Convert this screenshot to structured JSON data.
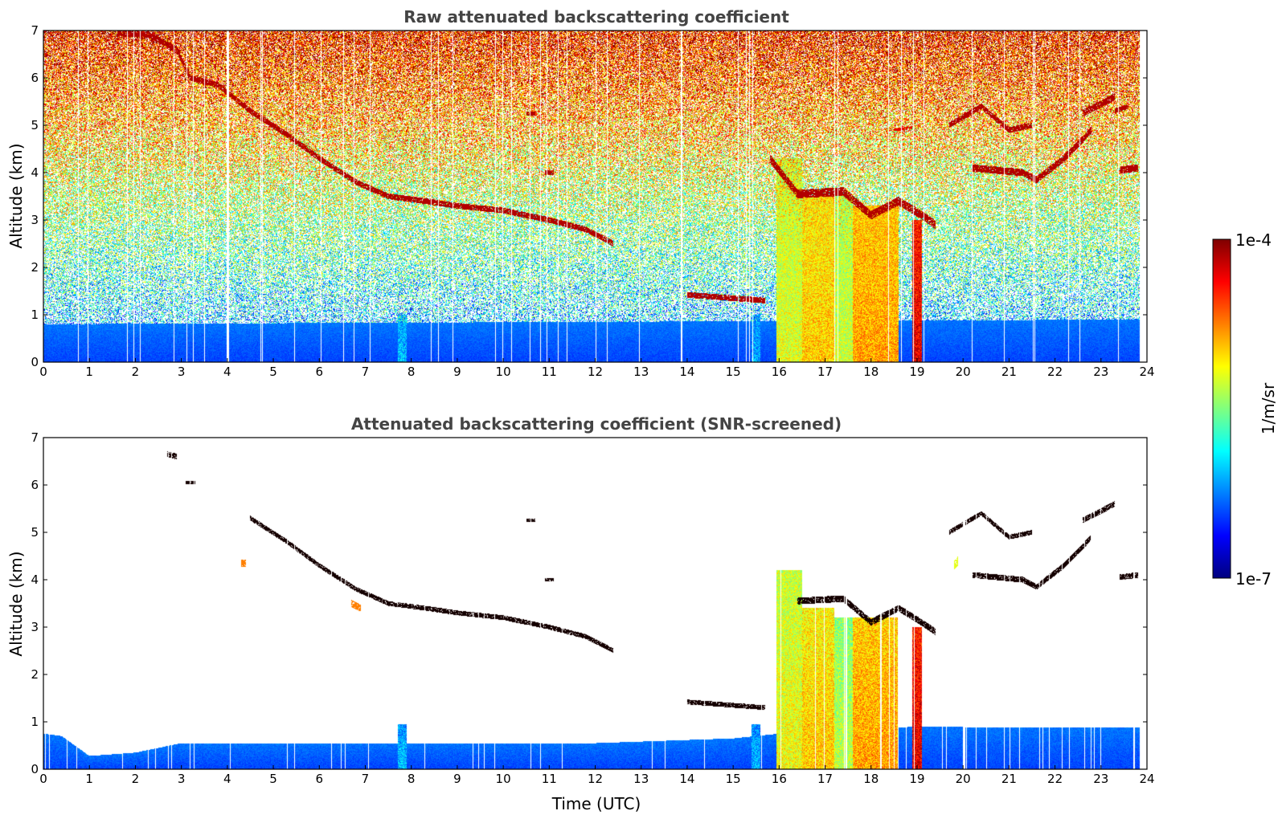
{
  "colormap": [
    "#00007f",
    "#0000ff",
    "#007fff",
    "#00ffff",
    "#7fff7f",
    "#ffff00",
    "#ff7f00",
    "#ff0000",
    "#7f0000"
  ],
  "colorbar": {
    "max_label": "1e-4",
    "min_label": "1e-7",
    "unit_label": "1/m/sr"
  },
  "chart_data": [
    {
      "type": "heatmap",
      "title": "Raw attenuated backscattering coefficient",
      "xlabel": "",
      "ylabel": "Altitude (km)",
      "xlim": [
        0,
        24
      ],
      "ylim": [
        0,
        7
      ],
      "x_ticks": [
        "0",
        "1",
        "2",
        "3",
        "4",
        "5",
        "6",
        "7",
        "8",
        "9",
        "10",
        "11",
        "12",
        "13",
        "14",
        "15",
        "16",
        "17",
        "18",
        "19",
        "20",
        "21",
        "22",
        "23",
        "24"
      ],
      "y_ticks": [
        "0",
        "1",
        "2",
        "3",
        "4",
        "5",
        "6",
        "7"
      ],
      "noise": true,
      "boundary_layer_top_km": [
        [
          0,
          0.8
        ],
        [
          24,
          0.9
        ]
      ],
      "cloud_layers": [
        {
          "points": [
            [
              1.6,
              6.95
            ],
            [
              2.3,
              6.9
            ],
            [
              2.9,
              6.6
            ],
            [
              3.2,
              6.0
            ],
            [
              3.8,
              5.85
            ],
            [
              4.5,
              5.3
            ],
            [
              5.3,
              4.8
            ],
            [
              6.0,
              4.3
            ],
            [
              6.8,
              3.8
            ],
            [
              7.5,
              3.5
            ],
            [
              8.3,
              3.4
            ],
            [
              9.0,
              3.3
            ],
            [
              10.0,
              3.2
            ],
            [
              11.0,
              3.0
            ],
            [
              11.8,
              2.8
            ],
            [
              12.4,
              2.5
            ]
          ],
          "thickness_km": 0.12,
          "level": 0.95
        },
        {
          "points": [
            [
              14.0,
              1.42
            ],
            [
              15.7,
              1.3
            ]
          ],
          "thickness_km": 0.12,
          "level": 0.95
        },
        {
          "points": [
            [
              15.8,
              4.3
            ],
            [
              16.4,
              3.55
            ],
            [
              17.4,
              3.6
            ],
            [
              18.0,
              3.1
            ],
            [
              18.6,
              3.4
            ],
            [
              19.1,
              3.1
            ],
            [
              19.4,
              2.9
            ]
          ],
          "thickness_km": 0.18,
          "level": 0.95
        },
        {
          "points": [
            [
              19.7,
              5.0
            ],
            [
              20.4,
              5.4
            ],
            [
              21.0,
              4.9
            ],
            [
              21.5,
              5.0
            ]
          ],
          "thickness_km": 0.12,
          "level": 0.95
        },
        {
          "points": [
            [
              20.2,
              4.1
            ],
            [
              21.3,
              4.0
            ],
            [
              21.6,
              3.85
            ],
            [
              22.2,
              4.3
            ],
            [
              22.8,
              4.9
            ]
          ],
          "thickness_km": 0.15,
          "level": 0.95
        },
        {
          "points": [
            [
              22.6,
              5.25
            ],
            [
              23.3,
              5.6
            ]
          ],
          "thickness_km": 0.15,
          "level": 0.95
        },
        {
          "points": [
            [
              23.3,
              5.3
            ],
            [
              23.6,
              5.4
            ]
          ],
          "thickness_km": 0.1,
          "level": 0.95
        },
        {
          "points": [
            [
              23.4,
              4.05
            ],
            [
              23.8,
              4.1
            ]
          ],
          "thickness_km": 0.15,
          "level": 0.95
        },
        {
          "points": [
            [
              10.5,
              5.25
            ],
            [
              10.7,
              5.25
            ]
          ],
          "thickness_km": 0.08,
          "level": 0.95
        },
        {
          "points": [
            [
              10.9,
              4.0
            ],
            [
              11.1,
              4.0
            ]
          ],
          "thickness_km": 0.1,
          "level": 0.95
        },
        {
          "points": [
            [
              18.5,
              4.9
            ],
            [
              18.9,
              4.95
            ]
          ],
          "thickness_km": 0.06,
          "level": 0.9
        }
      ],
      "precipitation": [
        {
          "x": [
            15.95,
            16.5
          ],
          "top_km": 4.3,
          "level": 0.6
        },
        {
          "x": [
            16.5,
            17.2
          ],
          "top_km": 3.5,
          "level": 0.68
        },
        {
          "x": [
            17.2,
            17.6
          ],
          "top_km": 3.5,
          "level": 0.58
        },
        {
          "x": [
            17.6,
            18.6
          ],
          "top_km": 3.3,
          "level": 0.72
        },
        {
          "x": [
            18.9,
            19.1
          ],
          "top_km": 3.0,
          "level": 0.9
        },
        {
          "x": [
            15.4,
            15.6
          ],
          "top_km": 1.0,
          "level": 0.3
        },
        {
          "x": [
            7.7,
            7.9
          ],
          "top_km": 1.0,
          "level": 0.32
        }
      ]
    },
    {
      "type": "heatmap",
      "title": "Attenuated backscattering coefficient (SNR-screened)",
      "xlabel": "Time (UTC)",
      "ylabel": "Altitude (km)",
      "xlim": [
        0,
        24
      ],
      "ylim": [
        0,
        7
      ],
      "x_ticks": [
        "0",
        "1",
        "2",
        "3",
        "4",
        "5",
        "6",
        "7",
        "8",
        "9",
        "10",
        "11",
        "12",
        "13",
        "14",
        "15",
        "16",
        "17",
        "18",
        "19",
        "20",
        "21",
        "22",
        "23",
        "24"
      ],
      "y_ticks": [
        "0",
        "1",
        "2",
        "3",
        "4",
        "5",
        "6",
        "7"
      ],
      "noise": false,
      "boundary_layer_top_km": [
        [
          0,
          0.75
        ],
        [
          0.4,
          0.7
        ],
        [
          1.0,
          0.28
        ],
        [
          2.0,
          0.35
        ],
        [
          3.0,
          0.55
        ],
        [
          6.0,
          0.55
        ],
        [
          9.0,
          0.55
        ],
        [
          12.0,
          0.55
        ],
        [
          15.0,
          0.65
        ],
        [
          16.0,
          0.75
        ],
        [
          19.0,
          0.9
        ],
        [
          21.0,
          0.88
        ],
        [
          24.0,
          0.88
        ]
      ],
      "cloud_layers": [
        {
          "points": [
            [
              2.7,
              6.65
            ],
            [
              2.9,
              6.6
            ]
          ],
          "thickness_km": 0.12,
          "level": 1.0
        },
        {
          "points": [
            [
              3.1,
              6.05
            ],
            [
              3.3,
              6.05
            ]
          ],
          "thickness_km": 0.08,
          "level": 1.0
        },
        {
          "points": [
            [
              4.5,
              5.3
            ],
            [
              5.3,
              4.8
            ],
            [
              6.0,
              4.3
            ],
            [
              6.8,
              3.8
            ],
            [
              7.5,
              3.5
            ],
            [
              8.3,
              3.4
            ],
            [
              9.0,
              3.3
            ],
            [
              10.0,
              3.2
            ],
            [
              11.0,
              3.0
            ],
            [
              11.8,
              2.8
            ],
            [
              12.4,
              2.5
            ]
          ],
          "thickness_km": 0.1,
          "level": 1.0
        },
        {
          "points": [
            [
              14.0,
              1.42
            ],
            [
              15.7,
              1.3
            ]
          ],
          "thickness_km": 0.1,
          "level": 1.0
        },
        {
          "points": [
            [
              16.4,
              3.55
            ],
            [
              17.4,
              3.6
            ],
            [
              18.0,
              3.1
            ],
            [
              18.6,
              3.4
            ],
            [
              19.1,
              3.1
            ],
            [
              19.4,
              2.9
            ]
          ],
          "thickness_km": 0.14,
          "level": 1.0
        },
        {
          "points": [
            [
              19.7,
              5.0
            ],
            [
              20.4,
              5.4
            ],
            [
              21.0,
              4.9
            ],
            [
              21.5,
              5.0
            ]
          ],
          "thickness_km": 0.1,
          "level": 1.0
        },
        {
          "points": [
            [
              20.2,
              4.1
            ],
            [
              21.3,
              4.0
            ],
            [
              21.6,
              3.85
            ],
            [
              22.2,
              4.3
            ],
            [
              22.8,
              4.9
            ]
          ],
          "thickness_km": 0.12,
          "level": 1.0
        },
        {
          "points": [
            [
              22.6,
              5.25
            ],
            [
              23.3,
              5.6
            ]
          ],
          "thickness_km": 0.12,
          "level": 1.0
        },
        {
          "points": [
            [
              23.4,
              4.05
            ],
            [
              23.8,
              4.1
            ]
          ],
          "thickness_km": 0.12,
          "level": 1.0
        },
        {
          "points": [
            [
              10.5,
              5.25
            ],
            [
              10.7,
              5.25
            ]
          ],
          "thickness_km": 0.06,
          "level": 1.0
        },
        {
          "points": [
            [
              10.9,
              4.0
            ],
            [
              11.1,
              4.0
            ]
          ],
          "thickness_km": 0.08,
          "level": 1.0
        },
        {
          "points": [
            [
              6.7,
              3.5
            ],
            [
              6.9,
              3.4
            ]
          ],
          "thickness_km": 0.15,
          "level": 0.75
        },
        {
          "points": [
            [
              4.3,
              4.35
            ],
            [
              4.4,
              4.35
            ]
          ],
          "thickness_km": 0.15,
          "level": 0.75
        },
        {
          "points": [
            [
              19.8,
              4.3
            ],
            [
              19.9,
              4.4
            ]
          ],
          "thickness_km": 0.2,
          "level": 0.6
        }
      ],
      "precipitation": [
        {
          "x": [
            15.95,
            16.5
          ],
          "top_km": 4.2,
          "level": 0.62
        },
        {
          "x": [
            16.5,
            17.2
          ],
          "top_km": 3.4,
          "level": 0.68
        },
        {
          "x": [
            17.2,
            17.6
          ],
          "top_km": 3.2,
          "level": 0.56
        },
        {
          "x": [
            17.6,
            18.6
          ],
          "top_km": 3.2,
          "level": 0.72
        },
        {
          "x": [
            18.9,
            19.1
          ],
          "top_km": 3.0,
          "level": 0.9
        },
        {
          "x": [
            15.4,
            15.6
          ],
          "top_km": 0.95,
          "level": 0.3
        },
        {
          "x": [
            7.7,
            7.9
          ],
          "top_km": 0.95,
          "level": 0.32
        }
      ]
    }
  ]
}
